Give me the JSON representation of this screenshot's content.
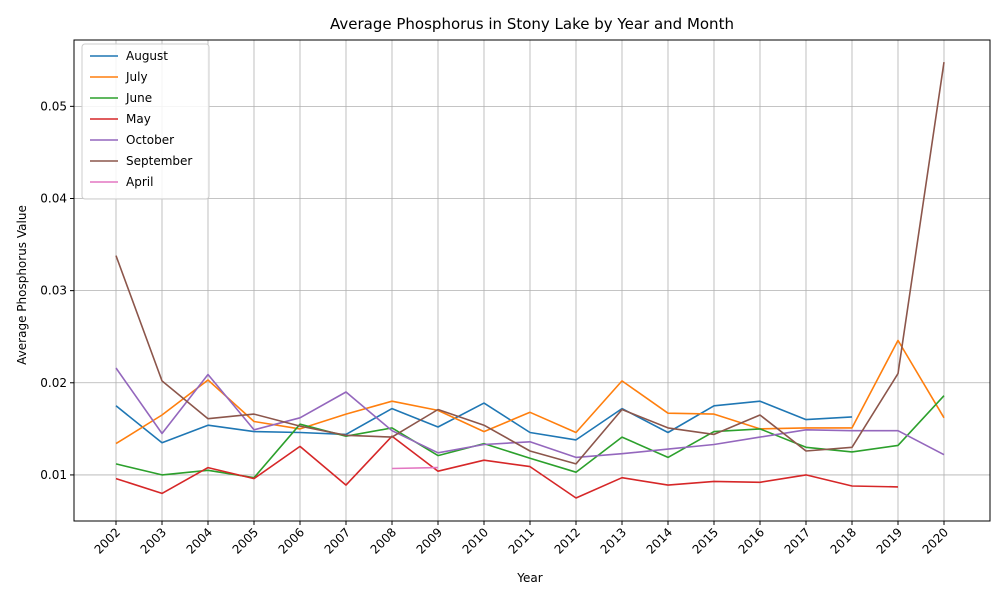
{
  "chart_data": {
    "type": "line",
    "title": "Average Phosphorus in Stony Lake by Year and Month",
    "xlabel": "Year",
    "ylabel": "Average Phosphorus Value",
    "x": [
      "2002",
      "2003",
      "2004",
      "2005",
      "2006",
      "2007",
      "2008",
      "2009",
      "2010",
      "2011",
      "2012",
      "2013",
      "2014",
      "2015",
      "2016",
      "2017",
      "2018",
      "2019",
      "2020"
    ],
    "ylim": [
      0.005,
      0.0572
    ],
    "yticks": [
      "0.01",
      "0.02",
      "0.03",
      "0.04",
      "0.05"
    ],
    "grid": true,
    "legend_position": "upper-left",
    "series": [
      {
        "name": "August",
        "color": "#1f77b4",
        "values": [
          0.0175,
          0.0135,
          0.0154,
          0.0147,
          0.0146,
          0.0144,
          0.0172,
          0.0152,
          0.0178,
          0.0146,
          0.0138,
          0.0172,
          0.0146,
          0.0175,
          0.018,
          0.016,
          0.0163,
          null,
          null
        ]
      },
      {
        "name": "July",
        "color": "#ff7f0e",
        "values": [
          0.0134,
          0.0165,
          0.0203,
          0.0158,
          0.015,
          0.0166,
          0.018,
          0.017,
          0.0147,
          0.0168,
          0.0146,
          0.0202,
          0.0167,
          0.0166,
          0.015,
          0.0151,
          0.0151,
          0.0246,
          0.0162
        ]
      },
      {
        "name": "June",
        "color": "#2ca02c",
        "values": [
          0.0112,
          0.01,
          0.0105,
          0.0097,
          0.0155,
          0.0142,
          0.0151,
          0.0121,
          0.0134,
          0.0118,
          0.0103,
          0.0141,
          0.0119,
          0.0147,
          0.015,
          0.013,
          0.0125,
          0.0132,
          0.0186
        ]
      },
      {
        "name": "May",
        "color": "#d62728",
        "values": [
          0.0096,
          0.008,
          0.0108,
          0.0096,
          0.0131,
          0.0089,
          0.0142,
          0.0104,
          0.0116,
          0.0109,
          0.0075,
          0.0097,
          0.0089,
          0.0093,
          0.0092,
          0.01,
          0.0088,
          0.0087,
          null
        ]
      },
      {
        "name": "October",
        "color": "#9467bd",
        "values": [
          0.0216,
          0.0145,
          0.0209,
          0.0149,
          0.0162,
          0.019,
          0.0148,
          0.0124,
          0.0133,
          0.0136,
          0.0119,
          0.0123,
          0.0128,
          0.0133,
          0.0141,
          0.0149,
          0.0148,
          0.0148,
          0.0122
        ]
      },
      {
        "name": "September",
        "color": "#8c564b",
        "values": [
          0.0338,
          0.0202,
          0.0161,
          0.0166,
          0.0153,
          0.0143,
          0.0141,
          0.0171,
          0.0154,
          0.0126,
          0.0112,
          0.0171,
          0.0151,
          0.0144,
          0.0165,
          0.0126,
          0.013,
          0.021,
          0.0548
        ]
      },
      {
        "name": "April",
        "color": "#e377c2",
        "values": [
          null,
          null,
          null,
          null,
          null,
          null,
          0.0107,
          0.0108,
          null,
          null,
          null,
          null,
          null,
          null,
          null,
          null,
          null,
          null,
          null
        ]
      }
    ]
  }
}
